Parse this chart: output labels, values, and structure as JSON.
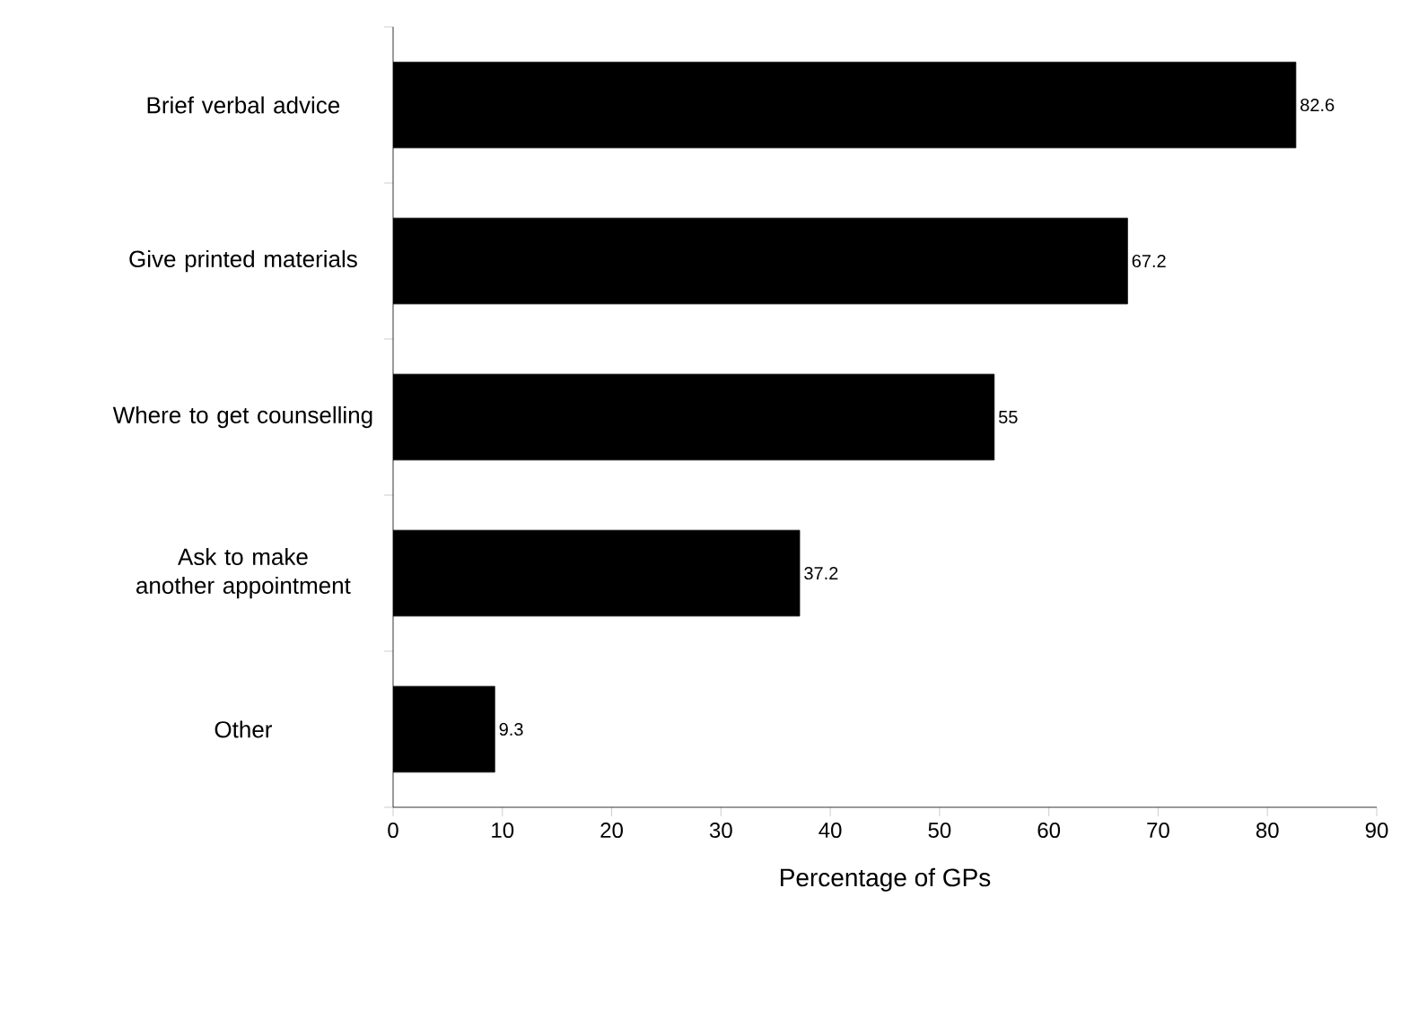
{
  "chart_data": {
    "type": "bar",
    "orientation": "horizontal",
    "xlabel": "Percentage of GPs",
    "categories": [
      "Brief verbal advice",
      "Give printed materials",
      "Where to get counselling",
      "Ask to make another appointment",
      "Other"
    ],
    "values": [
      82.6,
      67.2,
      55,
      37.2,
      9.3
    ],
    "color": "#000000",
    "xlim": [
      0,
      90
    ],
    "xticks": [
      0,
      10,
      20,
      30,
      40,
      50,
      60,
      70,
      80,
      90
    ],
    "data_labels": true
  }
}
